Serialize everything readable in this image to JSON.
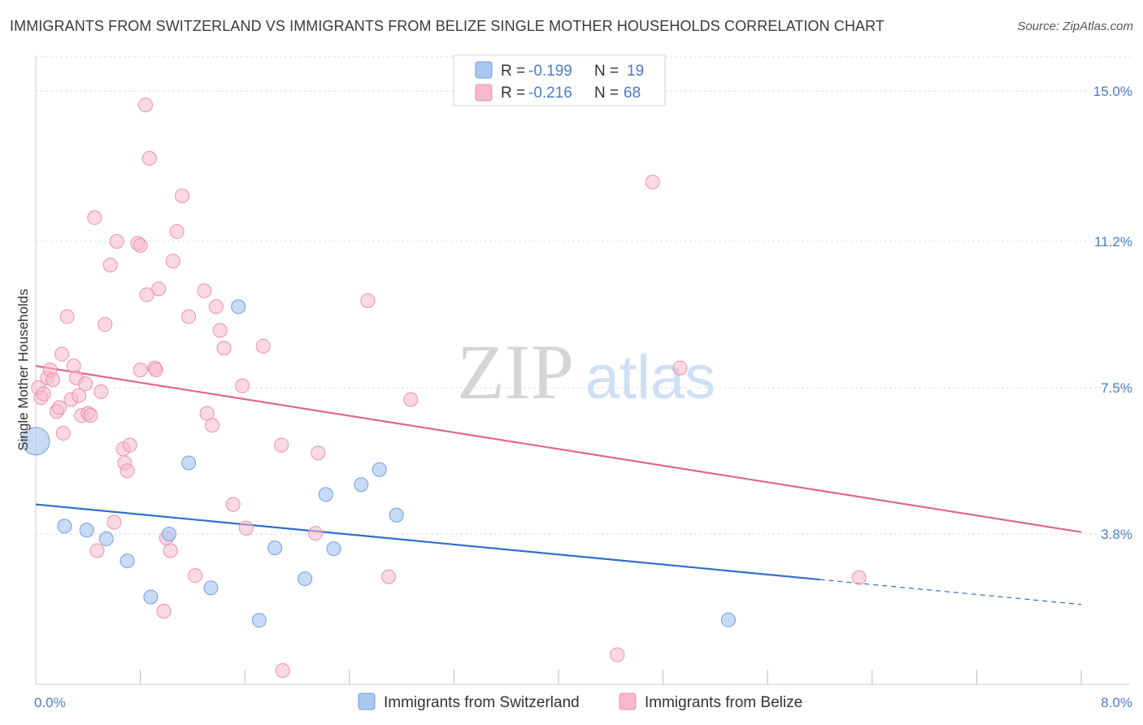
{
  "title": "IMMIGRANTS FROM SWITZERLAND VS IMMIGRANTS FROM BELIZE SINGLE MOTHER HOUSEHOLDS CORRELATION CHART",
  "source": "Source: ZipAtlas.com",
  "watermark": {
    "zip": "ZIP",
    "atlas": "atlas"
  },
  "colors": {
    "switzerland_fill": "#a9c8f0",
    "switzerland_stroke": "#6f9fe0",
    "switzerland_line": "#2f6fcb",
    "belize_fill": "#f7b9cb",
    "belize_stroke": "#ee8fae",
    "belize_line": "#e0668f",
    "tick_label": "#4a7cc9",
    "grid": "#dddddd"
  },
  "legend": {
    "rows": [
      {
        "r_label": "R = ",
        "r_value": "-0.199",
        "n_label": "N = ",
        "n_value": "19"
      },
      {
        "r_label": "R = ",
        "r_value": "-0.216",
        "n_label": "N = ",
        "n_value": "68"
      }
    ]
  },
  "chart_data": {
    "type": "scatter",
    "title": "IMMIGRANTS FROM SWITZERLAND VS IMMIGRANTS FROM BELIZE SINGLE MOTHER HOUSEHOLDS CORRELATION CHART",
    "xlabel": "",
    "ylabel": "Single Mother Households",
    "xlim": [
      0,
      8
    ],
    "ylim": [
      0,
      15.7
    ],
    "x_tick_labels": [
      "0.0%",
      "8.0%"
    ],
    "y_ticks": [
      3.8,
      7.5,
      11.2,
      15.0
    ],
    "y_tick_labels": [
      "3.8%",
      "7.5%",
      "11.2%",
      "15.0%"
    ],
    "grid": true,
    "legend_position": "top-center",
    "series": [
      {
        "name": "Immigrants from Switzerland",
        "stats": {
          "R": -0.199,
          "N": 19
        },
        "trend": {
          "x0": 0,
          "y0": 4.55,
          "x1": 6.0,
          "y1": 2.65,
          "dashed_to_x": 8.0,
          "dashed_to_y": 2.02
        },
        "points": [
          {
            "x": 0.0,
            "y": 6.15,
            "large": true
          },
          {
            "x": 0.22,
            "y": 4.0
          },
          {
            "x": 0.39,
            "y": 3.9
          },
          {
            "x": 0.54,
            "y": 3.68
          },
          {
            "x": 0.7,
            "y": 3.12
          },
          {
            "x": 0.88,
            "y": 2.21
          },
          {
            "x": 1.02,
            "y": 3.8
          },
          {
            "x": 1.17,
            "y": 5.6
          },
          {
            "x": 1.34,
            "y": 2.44
          },
          {
            "x": 1.55,
            "y": 9.55
          },
          {
            "x": 1.71,
            "y": 1.62
          },
          {
            "x": 1.83,
            "y": 3.45
          },
          {
            "x": 2.06,
            "y": 2.67
          },
          {
            "x": 2.22,
            "y": 4.8
          },
          {
            "x": 2.28,
            "y": 3.43
          },
          {
            "x": 2.49,
            "y": 5.05
          },
          {
            "x": 2.63,
            "y": 5.43
          },
          {
            "x": 2.76,
            "y": 4.28
          },
          {
            "x": 5.3,
            "y": 1.63
          }
        ]
      },
      {
        "name": "Immigrants from Belize",
        "stats": {
          "R": -0.216,
          "N": 68
        },
        "trend": {
          "x0": 0,
          "y0": 8.05,
          "x1": 8.0,
          "y1": 3.85
        },
        "points": [
          {
            "x": 0.02,
            "y": 7.5
          },
          {
            "x": 0.04,
            "y": 7.25
          },
          {
            "x": 0.06,
            "y": 7.35
          },
          {
            "x": 0.09,
            "y": 7.75
          },
          {
            "x": 0.11,
            "y": 7.95
          },
          {
            "x": 0.13,
            "y": 7.7
          },
          {
            "x": 0.16,
            "y": 6.9
          },
          {
            "x": 0.18,
            "y": 7.0
          },
          {
            "x": 0.2,
            "y": 8.35
          },
          {
            "x": 0.21,
            "y": 6.35
          },
          {
            "x": 0.24,
            "y": 9.3
          },
          {
            "x": 0.27,
            "y": 7.2
          },
          {
            "x": 0.29,
            "y": 8.05
          },
          {
            "x": 0.31,
            "y": 7.75
          },
          {
            "x": 0.33,
            "y": 7.3
          },
          {
            "x": 0.35,
            "y": 6.8
          },
          {
            "x": 0.38,
            "y": 7.6
          },
          {
            "x": 0.4,
            "y": 6.85
          },
          {
            "x": 0.42,
            "y": 6.8
          },
          {
            "x": 0.45,
            "y": 11.8
          },
          {
            "x": 0.47,
            "y": 3.38
          },
          {
            "x": 0.5,
            "y": 7.4
          },
          {
            "x": 0.53,
            "y": 9.1
          },
          {
            "x": 0.57,
            "y": 10.6
          },
          {
            "x": 0.6,
            "y": 4.1
          },
          {
            "x": 0.62,
            "y": 11.2
          },
          {
            "x": 0.67,
            "y": 5.95
          },
          {
            "x": 0.68,
            "y": 5.6
          },
          {
            "x": 0.7,
            "y": 5.4
          },
          {
            "x": 0.72,
            "y": 6.05
          },
          {
            "x": 0.78,
            "y": 11.15
          },
          {
            "x": 0.8,
            "y": 11.1
          },
          {
            "x": 0.8,
            "y": 7.95
          },
          {
            "x": 0.84,
            "y": 14.65
          },
          {
            "x": 0.85,
            "y": 9.85
          },
          {
            "x": 0.87,
            "y": 13.3
          },
          {
            "x": 0.91,
            "y": 8.0
          },
          {
            "x": 0.92,
            "y": 7.95
          },
          {
            "x": 0.94,
            "y": 10.0
          },
          {
            "x": 0.98,
            "y": 1.85
          },
          {
            "x": 1.0,
            "y": 3.7
          },
          {
            "x": 1.03,
            "y": 3.38
          },
          {
            "x": 1.05,
            "y": 10.7
          },
          {
            "x": 1.08,
            "y": 11.45
          },
          {
            "x": 1.12,
            "y": 12.35
          },
          {
            "x": 1.17,
            "y": 9.3
          },
          {
            "x": 1.22,
            "y": 2.75
          },
          {
            "x": 1.29,
            "y": 9.95
          },
          {
            "x": 1.31,
            "y": 6.85
          },
          {
            "x": 1.35,
            "y": 6.55
          },
          {
            "x": 1.38,
            "y": 9.55
          },
          {
            "x": 1.41,
            "y": 8.95
          },
          {
            "x": 1.44,
            "y": 8.5
          },
          {
            "x": 1.51,
            "y": 4.55
          },
          {
            "x": 1.58,
            "y": 7.55
          },
          {
            "x": 1.61,
            "y": 3.95
          },
          {
            "x": 1.74,
            "y": 8.55
          },
          {
            "x": 1.88,
            "y": 6.05
          },
          {
            "x": 1.89,
            "y": 0.35
          },
          {
            "x": 2.14,
            "y": 3.82
          },
          {
            "x": 2.16,
            "y": 5.85
          },
          {
            "x": 2.54,
            "y": 9.7
          },
          {
            "x": 2.7,
            "y": 2.72
          },
          {
            "x": 2.87,
            "y": 7.2
          },
          {
            "x": 4.45,
            "y": 0.75
          },
          {
            "x": 4.72,
            "y": 12.7
          },
          {
            "x": 4.93,
            "y": 8.0
          },
          {
            "x": 6.3,
            "y": 2.7
          }
        ]
      }
    ]
  }
}
